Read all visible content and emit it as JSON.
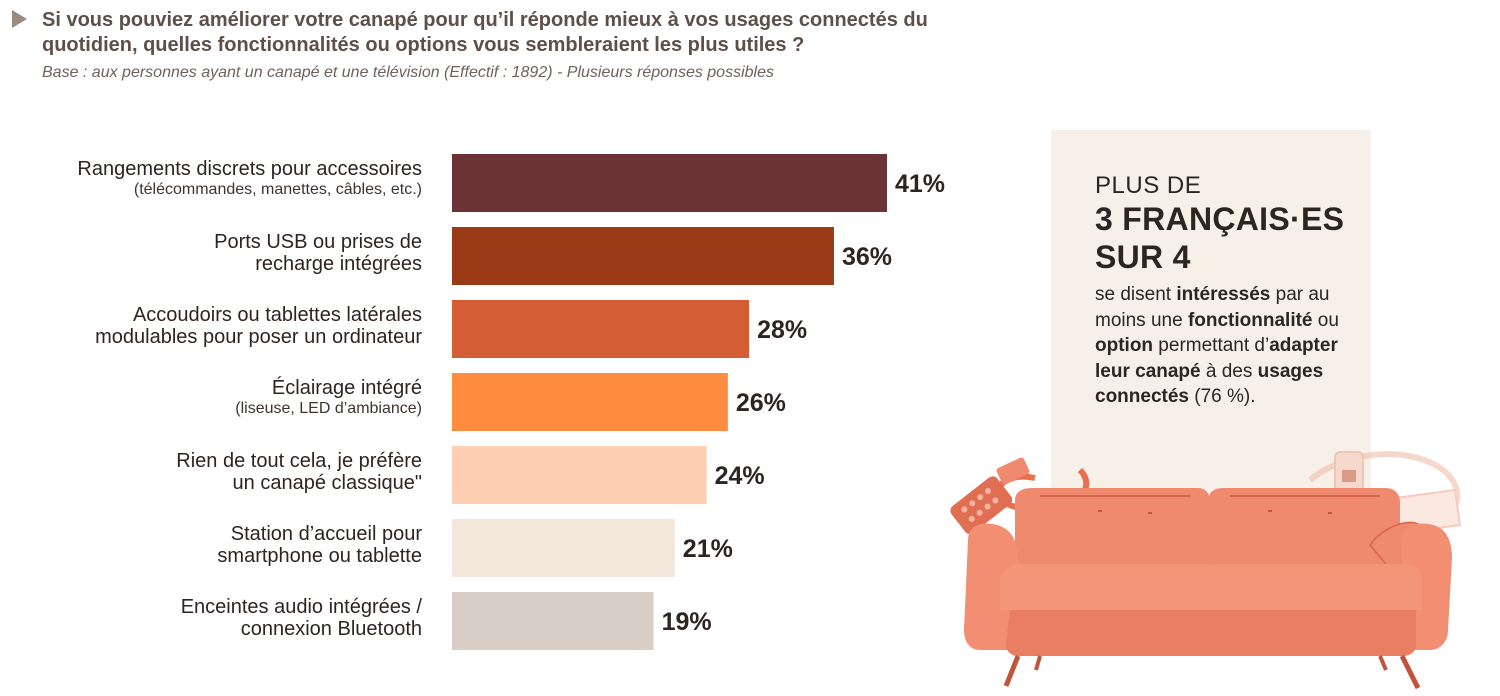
{
  "header": {
    "question": "Si vous pouviez améliorer votre canapé pour qu’il réponde mieux à vos usages connectés du quotidien, quelles fonctionnalités ou options vous sembleraient les plus utiles ?",
    "base": "Base : aux personnes ayant un canapé et une télévision (Effectif : 1892)  -  Plusieurs réponses possibles"
  },
  "chart_data": {
    "type": "bar",
    "orientation": "horizontal",
    "title": "",
    "xlabel": "",
    "ylabel": "",
    "xlim": [
      0,
      41
    ],
    "categories": [
      {
        "line1": "Rangements discrets pour accessoires",
        "line2": "(télécommandes, manettes, câbles, etc.)",
        "line2_small": true
      },
      {
        "line1": "Ports USB ou prises de",
        "line2": "recharge intégrées",
        "line2_small": false
      },
      {
        "line1": "Accoudoirs ou tablettes latérales",
        "line2": "modulables pour poser un ordinateur",
        "line2_small": false
      },
      {
        "line1": "Éclairage intégré",
        "line2": "(liseuse, LED d’ambiance)",
        "line2_small": true
      },
      {
        "line1": "Rien de tout cela, je préfère",
        "line2": "un canapé classique\"",
        "line2_small": false
      },
      {
        "line1": "Station d’accueil pour",
        "line2": "smartphone ou tablette",
        "line2_small": false
      },
      {
        "line1": "Enceintes audio intégrées /",
        "line2": "connexion Bluetooth",
        "line2_small": false
      }
    ],
    "values": [
      41,
      36,
      28,
      26,
      24,
      21,
      19
    ],
    "value_labels": [
      "41%",
      "36%",
      "28%",
      "26%",
      "24%",
      "21%",
      "19%"
    ],
    "colors": [
      "#6b3336",
      "#9a3a17",
      "#d45d36",
      "#ff8c3f",
      "#ffcfb3",
      "#f3e6db",
      "#d8cec5"
    ]
  },
  "side_panel": {
    "line1": "PLUS DE",
    "line2": "3 FRANÇAIS·ES",
    "line3": "SUR 4",
    "desc": [
      {
        "t": "se disent ",
        "b": false
      },
      {
        "t": "intéressés",
        "b": true
      },
      {
        "t": " par au moins une ",
        "b": false
      },
      {
        "t": "fonctionnalité",
        "b": true
      },
      {
        "t": " ou ",
        "b": false
      },
      {
        "t": "option",
        "b": true
      },
      {
        "t": " permettant d’",
        "b": false
      },
      {
        "t": "adapter leur canapé",
        "b": true
      },
      {
        "t": " à des ",
        "b": false
      },
      {
        "t": "usages connectés",
        "b": true
      },
      {
        "t": " (76 %).",
        "b": false
      }
    ]
  },
  "colors": {
    "sofa": "#f08a6e",
    "sofa_dark": "#d9664a",
    "sofa_legs": "#c2543d",
    "accent_box": "#f6f0e9"
  }
}
